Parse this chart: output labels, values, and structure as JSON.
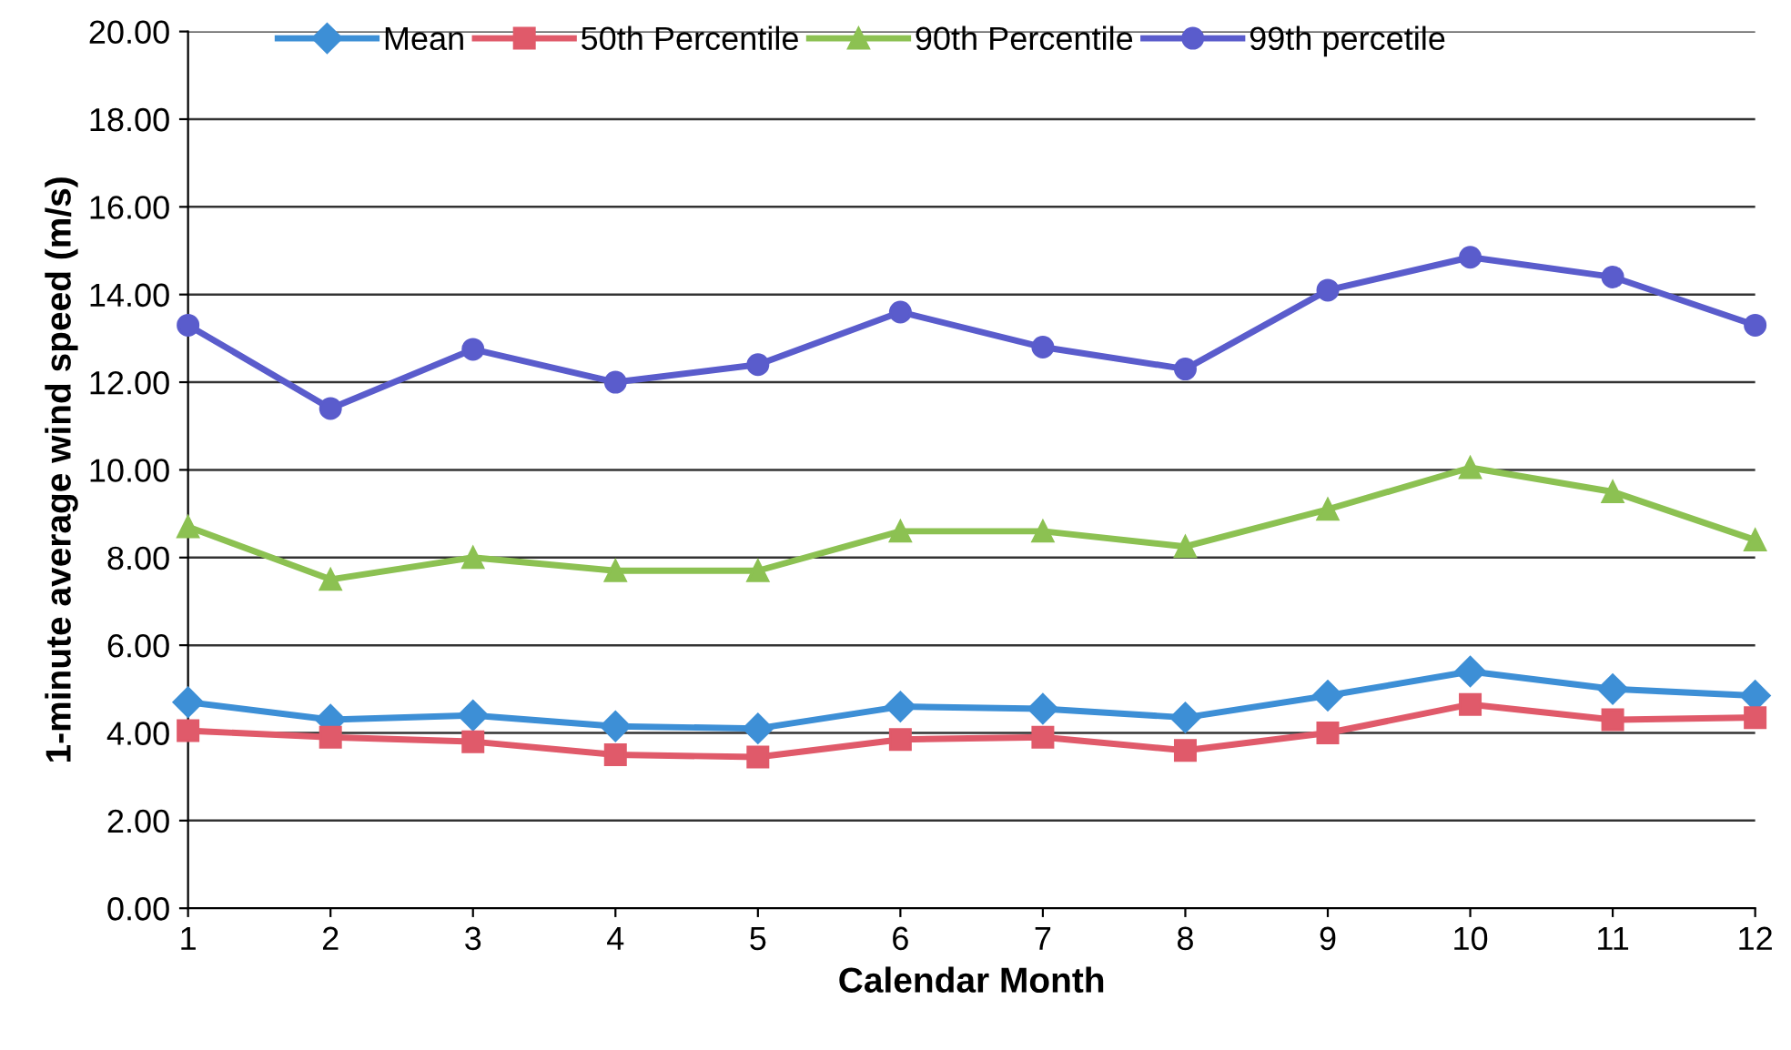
{
  "chart_data": {
    "type": "line",
    "xlabel": "Calendar Month",
    "ylabel": "1-minute average wind speed (m/s)",
    "x": [
      1,
      2,
      3,
      4,
      5,
      6,
      7,
      8,
      9,
      10,
      11,
      12
    ],
    "xlim": [
      1,
      12
    ],
    "xticks": [
      1,
      2,
      3,
      4,
      5,
      6,
      7,
      8,
      9,
      10,
      11,
      12
    ],
    "ylim": [
      0,
      20
    ],
    "yticks": [
      {
        "value": 0,
        "label": "0.00"
      },
      {
        "value": 2,
        "label": "2.00"
      },
      {
        "value": 4,
        "label": "4.00"
      },
      {
        "value": 6,
        "label": "6.00"
      },
      {
        "value": 8,
        "label": "8.00"
      },
      {
        "value": 10,
        "label": "10.00"
      },
      {
        "value": 12,
        "label": "12.00"
      },
      {
        "value": 14,
        "label": "14.00"
      },
      {
        "value": 16,
        "label": "16.00"
      },
      {
        "value": 18,
        "label": "18.00"
      },
      {
        "value": 20,
        "label": "20.00"
      }
    ],
    "grid": "y",
    "legend": "top",
    "line_style": "solid",
    "series": [
      {
        "name": "Mean",
        "color": "#3d8fd6",
        "marker": "diamond",
        "values": [
          4.7,
          4.3,
          4.4,
          4.15,
          4.1,
          4.6,
          4.55,
          4.35,
          4.85,
          5.4,
          5.0,
          4.85
        ]
      },
      {
        "name": "50th Percentile",
        "color": "#e05a6a",
        "marker": "square",
        "values": [
          4.05,
          3.9,
          3.8,
          3.5,
          3.45,
          3.85,
          3.9,
          3.6,
          4.0,
          4.65,
          4.3,
          4.35
        ]
      },
      {
        "name": "90th Percentile",
        "color": "#8cc152",
        "marker": "triangle",
        "values": [
          8.7,
          7.5,
          8.0,
          7.7,
          7.7,
          8.6,
          8.6,
          8.25,
          9.1,
          10.05,
          9.5,
          8.4
        ]
      },
      {
        "name": "99th percetile",
        "color": "#5a5ccc",
        "marker": "circle",
        "values": [
          13.3,
          11.4,
          12.75,
          12.0,
          12.4,
          13.6,
          12.8,
          12.3,
          14.1,
          14.85,
          14.4,
          13.3
        ]
      }
    ]
  }
}
